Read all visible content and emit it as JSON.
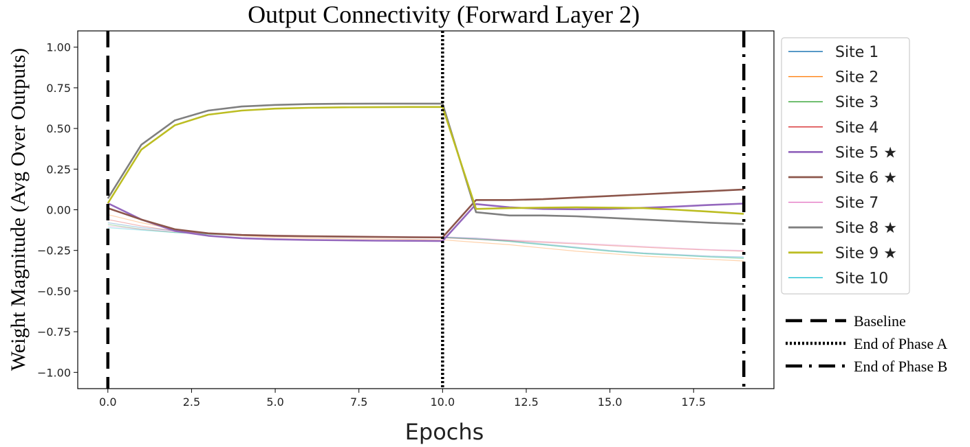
{
  "chart_data": {
    "type": "line",
    "title": "Output Connectivity (Forward Layer 2)",
    "xlabel": "Epochs",
    "ylabel": "Weight Magnitude (Avg Over Outputs)",
    "xlim": [
      -0.9,
      19.9
    ],
    "ylim": [
      -1.1,
      1.1
    ],
    "xticks": [
      0.0,
      2.5,
      5.0,
      7.5,
      10.0,
      12.5,
      15.0,
      17.5
    ],
    "xtick_labels": [
      "0.0",
      "2.5",
      "5.0",
      "7.5",
      "10.0",
      "12.5",
      "15.0",
      "17.5"
    ],
    "yticks": [
      1.0,
      0.75,
      0.5,
      0.25,
      0.0,
      -0.25,
      -0.5,
      -0.75,
      -1.0
    ],
    "ytick_labels": [
      "1.00",
      "0.75",
      "0.50",
      "0.25",
      "0.00",
      "−0.25",
      "−0.50",
      "−0.75",
      "−1.00"
    ],
    "grid": false,
    "legend_placement": "outside-right",
    "x": [
      0,
      1,
      2,
      3,
      4,
      5,
      6,
      7,
      8,
      9,
      10,
      11,
      12,
      13,
      14,
      15,
      16,
      17,
      18,
      19
    ],
    "series": [
      {
        "name": "Site 1",
        "color": "#1f77b4",
        "highlight": false,
        "values": [
          -0.08,
          -0.11,
          -0.13,
          -0.145,
          -0.155,
          -0.16,
          -0.163,
          -0.165,
          -0.167,
          -0.168,
          -0.17,
          -0.175,
          -0.19,
          -0.21,
          -0.23,
          -0.25,
          -0.265,
          -0.275,
          -0.285,
          -0.29
        ]
      },
      {
        "name": "Site 2",
        "color": "#ff7f0e",
        "highlight": false,
        "values": [
          -0.03,
          -0.08,
          -0.12,
          -0.145,
          -0.16,
          -0.17,
          -0.175,
          -0.178,
          -0.18,
          -0.182,
          -0.185,
          -0.2,
          -0.215,
          -0.235,
          -0.255,
          -0.27,
          -0.285,
          -0.295,
          -0.305,
          -0.315
        ]
      },
      {
        "name": "Site 3",
        "color": "#2ca02c",
        "highlight": false,
        "values": [
          -0.09,
          -0.12,
          -0.14,
          -0.15,
          -0.158,
          -0.162,
          -0.165,
          -0.167,
          -0.168,
          -0.169,
          -0.17,
          -0.18,
          -0.195,
          -0.215,
          -0.235,
          -0.255,
          -0.27,
          -0.28,
          -0.29,
          -0.3
        ]
      },
      {
        "name": "Site 4",
        "color": "#d62728",
        "highlight": false,
        "values": [
          -0.06,
          -0.1,
          -0.13,
          -0.148,
          -0.158,
          -0.163,
          -0.166,
          -0.168,
          -0.17,
          -0.171,
          -0.172,
          -0.182,
          -0.19,
          -0.2,
          -0.21,
          -0.22,
          -0.23,
          -0.24,
          -0.248,
          -0.255
        ]
      },
      {
        "name": "Site 5 ★",
        "color": "#9467bd",
        "highlight": true,
        "values": [
          0.04,
          -0.06,
          -0.13,
          -0.16,
          -0.175,
          -0.182,
          -0.186,
          -0.188,
          -0.19,
          -0.191,
          -0.192,
          0.035,
          0.015,
          0.005,
          0.003,
          0.005,
          0.012,
          0.02,
          0.03,
          0.038
        ]
      },
      {
        "name": "Site 6 ★",
        "color": "#8c564b",
        "highlight": true,
        "values": [
          0.01,
          -0.06,
          -0.12,
          -0.145,
          -0.155,
          -0.16,
          -0.163,
          -0.165,
          -0.167,
          -0.169,
          -0.17,
          0.06,
          0.06,
          0.065,
          0.075,
          0.085,
          0.095,
          0.105,
          0.115,
          0.125
        ]
      },
      {
        "name": "Site 7",
        "color": "#e377c2",
        "highlight": false,
        "values": [
          -0.1,
          -0.12,
          -0.135,
          -0.145,
          -0.152,
          -0.156,
          -0.159,
          -0.161,
          -0.163,
          -0.164,
          -0.165,
          -0.175,
          -0.185,
          -0.195,
          -0.205,
          -0.215,
          -0.225,
          -0.235,
          -0.245,
          -0.25
        ]
      },
      {
        "name": "Site 8 ★",
        "color": "#7f7f7f",
        "highlight": true,
        "values": [
          0.07,
          0.4,
          0.55,
          0.61,
          0.635,
          0.645,
          0.65,
          0.652,
          0.653,
          0.653,
          0.653,
          -0.015,
          -0.035,
          -0.035,
          -0.04,
          -0.05,
          -0.06,
          -0.07,
          -0.08,
          -0.088
        ]
      },
      {
        "name": "Site 9 ★",
        "color": "#bcbd22",
        "highlight": true,
        "values": [
          0.04,
          0.37,
          0.52,
          0.585,
          0.61,
          0.622,
          0.627,
          0.63,
          0.631,
          0.632,
          0.632,
          0.005,
          0.01,
          0.013,
          0.015,
          0.013,
          0.01,
          0.0,
          -0.012,
          -0.025
        ]
      },
      {
        "name": "Site 10",
        "color": "#17becf",
        "highlight": false,
        "values": [
          -0.11,
          -0.125,
          -0.14,
          -0.15,
          -0.156,
          -0.16,
          -0.163,
          -0.165,
          -0.166,
          -0.167,
          -0.168,
          -0.18,
          -0.195,
          -0.215,
          -0.235,
          -0.255,
          -0.27,
          -0.28,
          -0.29,
          -0.295
        ]
      }
    ],
    "reference_lines": [
      {
        "name": "Baseline",
        "x": 0,
        "style": "dashed"
      },
      {
        "name": "End of Phase A",
        "x": 10,
        "style": "dotted"
      },
      {
        "name": "End of Phase B",
        "x": 19,
        "style": "dashdot"
      }
    ]
  }
}
